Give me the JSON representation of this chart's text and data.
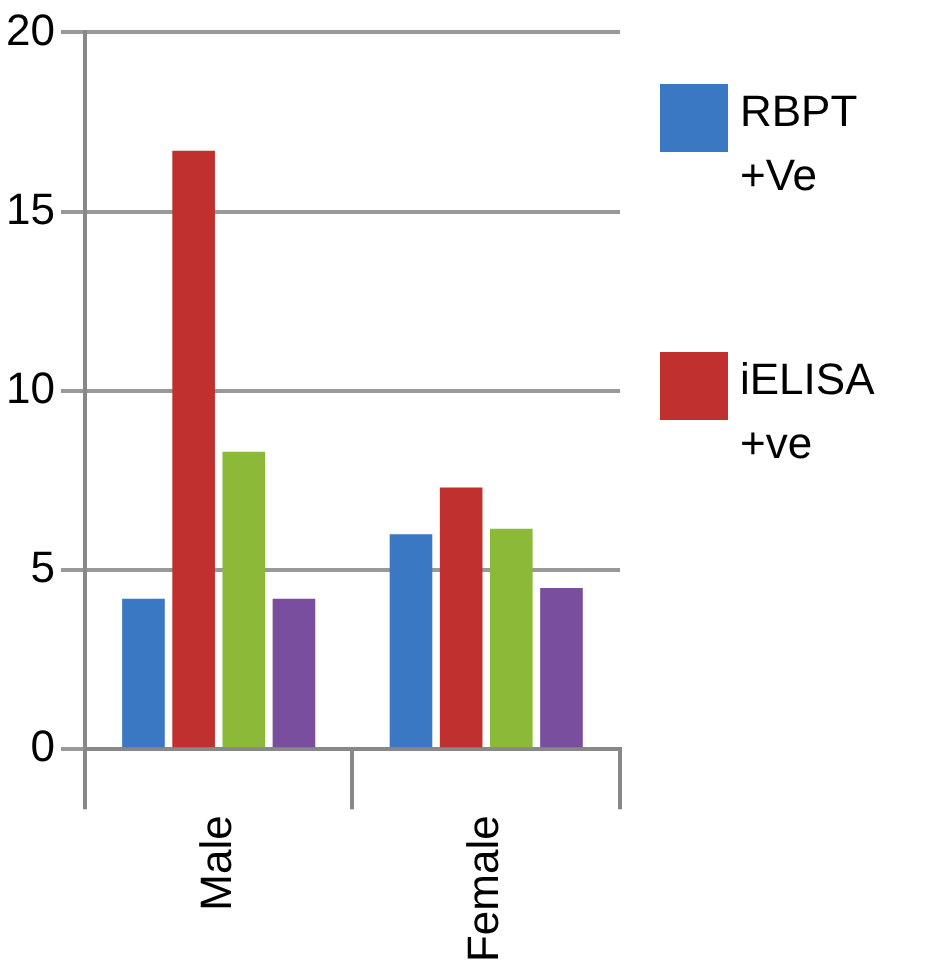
{
  "chart_data": {
    "type": "bar",
    "categories": [
      "Male",
      "Female"
    ],
    "series": [
      {
        "name": "RBPT +Ve",
        "color": "#3a78c4",
        "values": [
          4.2,
          6.0
        ]
      },
      {
        "name": "iELISA +ve",
        "color": "#c0302e",
        "values": [
          16.7,
          7.3
        ]
      },
      {
        "color": "#8cba38",
        "values": [
          8.3,
          6.15
        ]
      },
      {
        "color": "#7a4e9e",
        "values": [
          4.2,
          4.5
        ]
      }
    ],
    "ylim": [
      0,
      20
    ],
    "yticks": [
      0,
      5,
      10,
      15,
      20
    ],
    "grid": "y",
    "legend": "right"
  }
}
